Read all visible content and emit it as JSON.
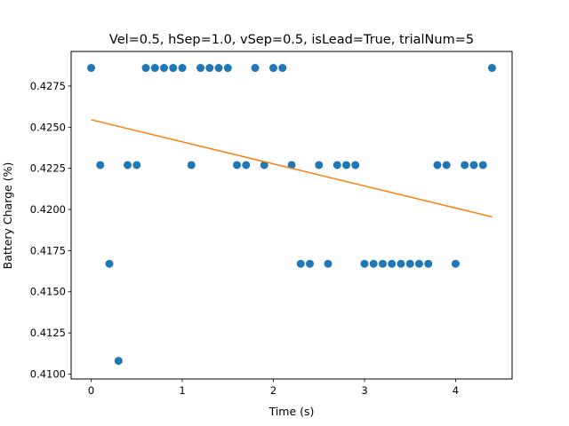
{
  "chart_data": {
    "type": "scatter",
    "title": "Vel=0.5, hSep=1.0, vSep=0.5, isLead=True, trialNum=5",
    "xlabel": "Time (s)",
    "ylabel": "Battery Charge (%)",
    "xlim": [
      -0.22,
      4.62
    ],
    "ylim": [
      0.4097,
      0.4296
    ],
    "xticks": [
      0,
      1,
      2,
      3,
      4
    ],
    "xtick_labels": [
      "0",
      "1",
      "2",
      "3",
      "4"
    ],
    "yticks": [
      0.41,
      0.4125,
      0.415,
      0.4175,
      0.42,
      0.4225,
      0.425,
      0.4275
    ],
    "ytick_labels": [
      "0.4100",
      "0.4125",
      "0.4150",
      "0.4175",
      "0.4200",
      "0.4225",
      "0.4250",
      "0.4275"
    ],
    "grid": false,
    "series": [
      {
        "kind": "scatter",
        "color": "#1f77b4",
        "x": [
          0.0,
          0.1,
          0.2,
          0.3,
          0.4,
          0.5,
          0.6,
          0.7,
          0.8,
          0.9,
          1.0,
          1.1,
          1.2,
          1.3,
          1.4,
          1.5,
          1.6,
          1.7,
          1.8,
          1.9,
          2.0,
          2.1,
          2.2,
          2.3,
          2.4,
          2.5,
          2.6,
          2.7,
          2.8,
          2.9,
          3.0,
          3.1,
          3.2,
          3.3,
          3.4,
          3.5,
          3.6,
          3.7,
          3.8,
          3.9,
          4.0,
          4.1,
          4.2,
          4.3,
          4.4
        ],
        "y": [
          0.4286,
          0.4227,
          0.4167,
          0.4108,
          0.4227,
          0.4227,
          0.4286,
          0.4286,
          0.4286,
          0.4286,
          0.4286,
          0.4227,
          0.4286,
          0.4286,
          0.4286,
          0.4286,
          0.4227,
          0.4227,
          0.4286,
          0.4227,
          0.4286,
          0.4286,
          0.4227,
          0.4167,
          0.4167,
          0.4227,
          0.4167,
          0.4227,
          0.4227,
          0.4227,
          0.4167,
          0.4167,
          0.4167,
          0.4167,
          0.4167,
          0.4167,
          0.4167,
          0.4167,
          0.4227,
          0.4227,
          0.4167,
          0.4227,
          0.4227,
          0.4227,
          0.4286
        ]
      },
      {
        "kind": "line",
        "color": "#ff7f0e",
        "x": [
          0.0,
          4.4
        ],
        "y": [
          0.42545,
          0.41955
        ]
      }
    ]
  }
}
